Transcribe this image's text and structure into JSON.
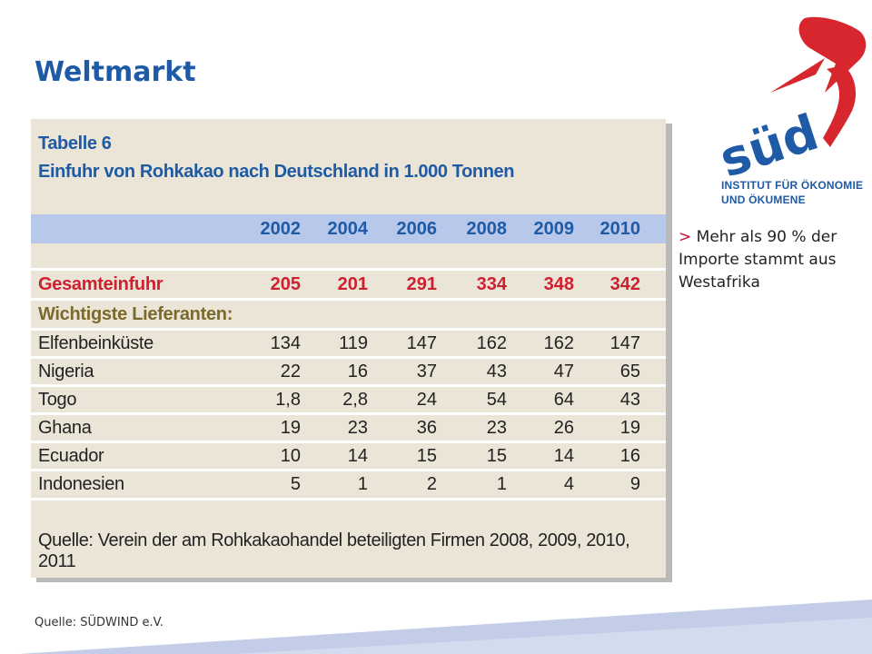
{
  "slide": {
    "title": "Weltmarkt",
    "footer_source": "Quelle: SÜDWIND e.V."
  },
  "logo": {
    "name": "südwind",
    "tagline_line1": "INSTITUT FÜR ÖKONOMIE",
    "tagline_line2": "UND ÖKUMENE",
    "colors": {
      "red": "#d8262f",
      "blue": "#1f5aa6"
    }
  },
  "bullet": {
    "marker": ">",
    "text": "Mehr als 90 % der Importe stammt aus Westafrika"
  },
  "table": {
    "caption_line1": "Tabelle 6",
    "caption_line2": "Einfuhr von Rohkakao nach Deutschland in 1.000 Tonnen",
    "years": [
      "2002",
      "2004",
      "2006",
      "2008",
      "2009",
      "2010"
    ],
    "total": {
      "label": "Gesamteinfuhr",
      "values": [
        "205",
        "201",
        "291",
        "334",
        "348",
        "342"
      ]
    },
    "section_label": "Wichtigste Lieferanten:",
    "rows": [
      {
        "label": "Elfenbeinküste",
        "values": [
          "134",
          "119",
          "147",
          "162",
          "162",
          "147"
        ]
      },
      {
        "label": "Nigeria",
        "values": [
          "22",
          "16",
          "37",
          "43",
          "47",
          "65"
        ]
      },
      {
        "label": "Togo",
        "values": [
          "1,8",
          "2,8",
          "24",
          "54",
          "64",
          "43"
        ]
      },
      {
        "label": "Ghana",
        "values": [
          "19",
          "23",
          "36",
          "23",
          "26",
          "19"
        ]
      },
      {
        "label": "Ecuador",
        "values": [
          "10",
          "14",
          "15",
          "15",
          "14",
          "16"
        ]
      },
      {
        "label": "Indonesien",
        "values": [
          "5",
          "1",
          "2",
          "1",
          "4",
          "9"
        ]
      }
    ],
    "source": "Quelle: Verein der am Rohkakaohandel beteiligten Firmen 2008, 2009, 2010, 2011",
    "colors": {
      "background": "#eae5d7",
      "header_band": "#b7c8ea",
      "highlight": "#cf2030",
      "section": "#7a6a2e"
    }
  }
}
